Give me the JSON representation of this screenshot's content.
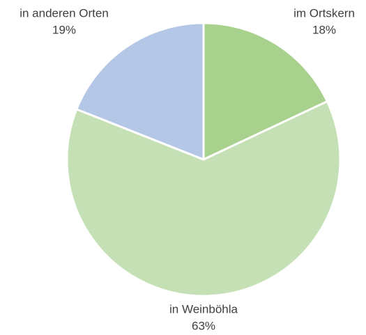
{
  "chart_data": {
    "type": "pie",
    "categories": [
      "im Ortskern",
      "in Weinböhla",
      "in anderen Orten"
    ],
    "values": [
      18,
      63,
      19
    ],
    "value_labels": [
      "18%",
      "63%",
      "19%"
    ],
    "colors": [
      "#a9d18e",
      "#c5e0b4",
      "#b4c7e7"
    ]
  }
}
